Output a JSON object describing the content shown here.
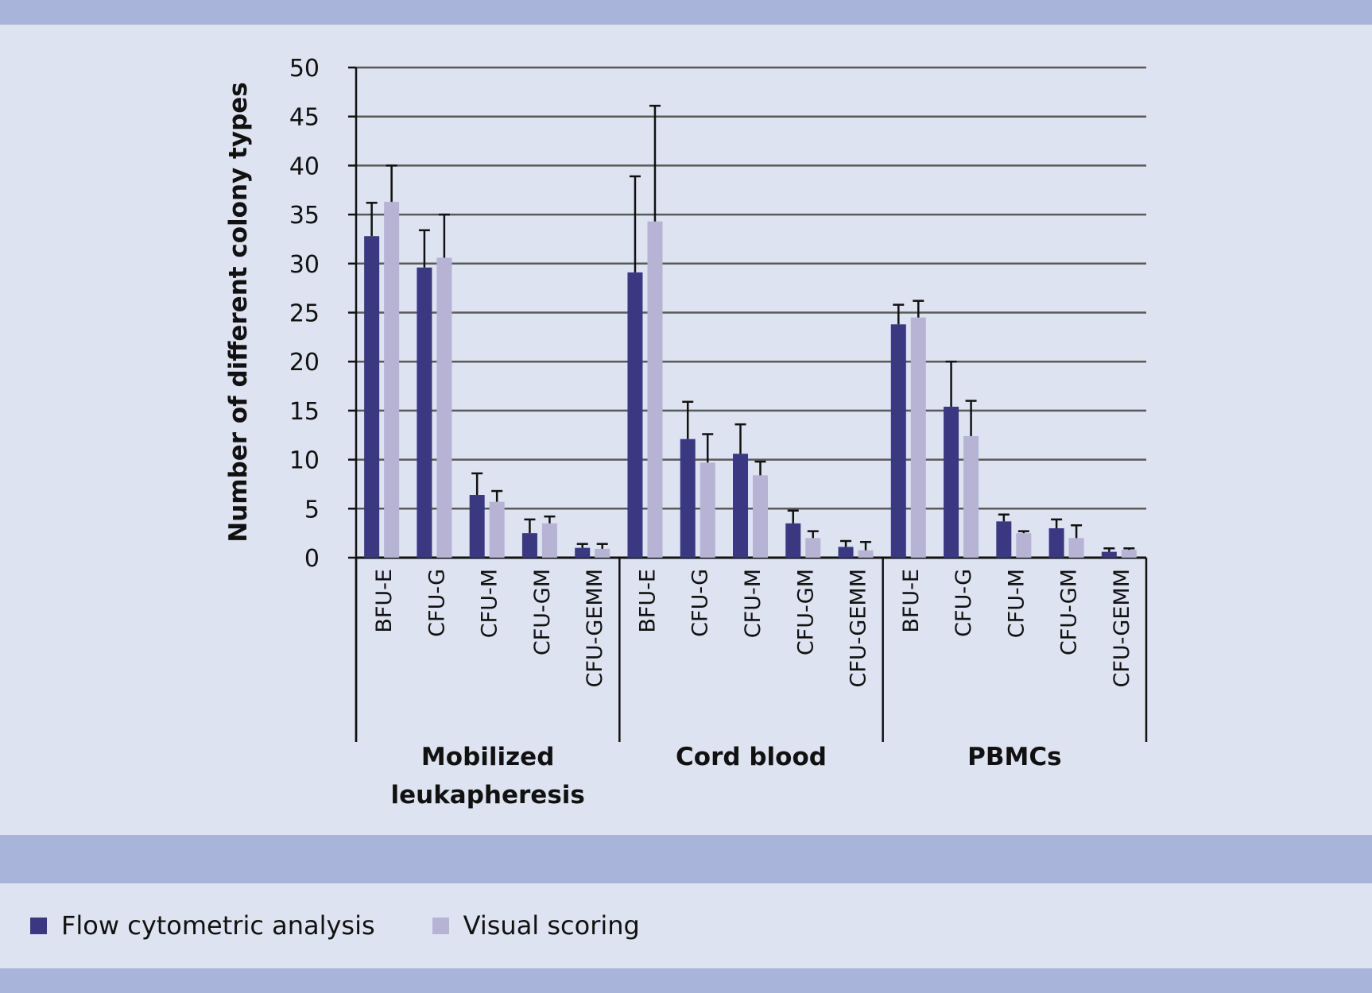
{
  "chart_data": {
    "type": "bar",
    "ylabel": "Number of different colony types",
    "ylim": [
      0,
      50
    ],
    "yticks": [
      0,
      5,
      10,
      15,
      20,
      25,
      30,
      35,
      40,
      45,
      50
    ],
    "grid": true,
    "legend_position": "bottom",
    "groups": [
      {
        "label": "Mobilized leukapheresis",
        "label_lines": [
          "Mobilized",
          "leukapheresis"
        ]
      },
      {
        "label": "Cord blood",
        "label_lines": [
          "Cord blood"
        ]
      },
      {
        "label": "PBMCs",
        "label_lines": [
          "PBMCs"
        ]
      }
    ],
    "categories": [
      "BFU-E",
      "CFU-G",
      "CFU-M",
      "CFU-GM",
      "CFU-GEMM"
    ],
    "series": [
      {
        "name": "Flow cytometric analysis",
        "color": "#3b3882",
        "values": [
          [
            32.8,
            29.6,
            6.4,
            2.5,
            1.0
          ],
          [
            29.1,
            12.1,
            10.6,
            3.5,
            1.1
          ],
          [
            23.8,
            15.4,
            3.7,
            3.0,
            0.6
          ]
        ],
        "error_upper": [
          [
            36.2,
            33.4,
            8.6,
            3.9,
            1.4
          ],
          [
            38.9,
            15.9,
            13.6,
            4.8,
            1.7
          ],
          [
            25.8,
            20.0,
            4.4,
            3.9,
            0.95
          ]
        ]
      },
      {
        "name": "Visual scoring",
        "color": "#b6b3d5",
        "values": [
          [
            36.3,
            30.6,
            5.7,
            3.5,
            0.9
          ],
          [
            34.3,
            9.7,
            8.4,
            2.0,
            0.75
          ],
          [
            24.5,
            12.4,
            2.5,
            2.0,
            0.8
          ]
        ],
        "error_upper": [
          [
            40.0,
            35.0,
            6.8,
            4.2,
            1.4
          ],
          [
            46.1,
            12.6,
            9.8,
            2.7,
            1.6
          ],
          [
            26.2,
            16.0,
            2.7,
            3.3,
            0.95
          ]
        ]
      }
    ]
  },
  "colors": {
    "background": "#dde3f0",
    "band": "#a8b4d9"
  }
}
